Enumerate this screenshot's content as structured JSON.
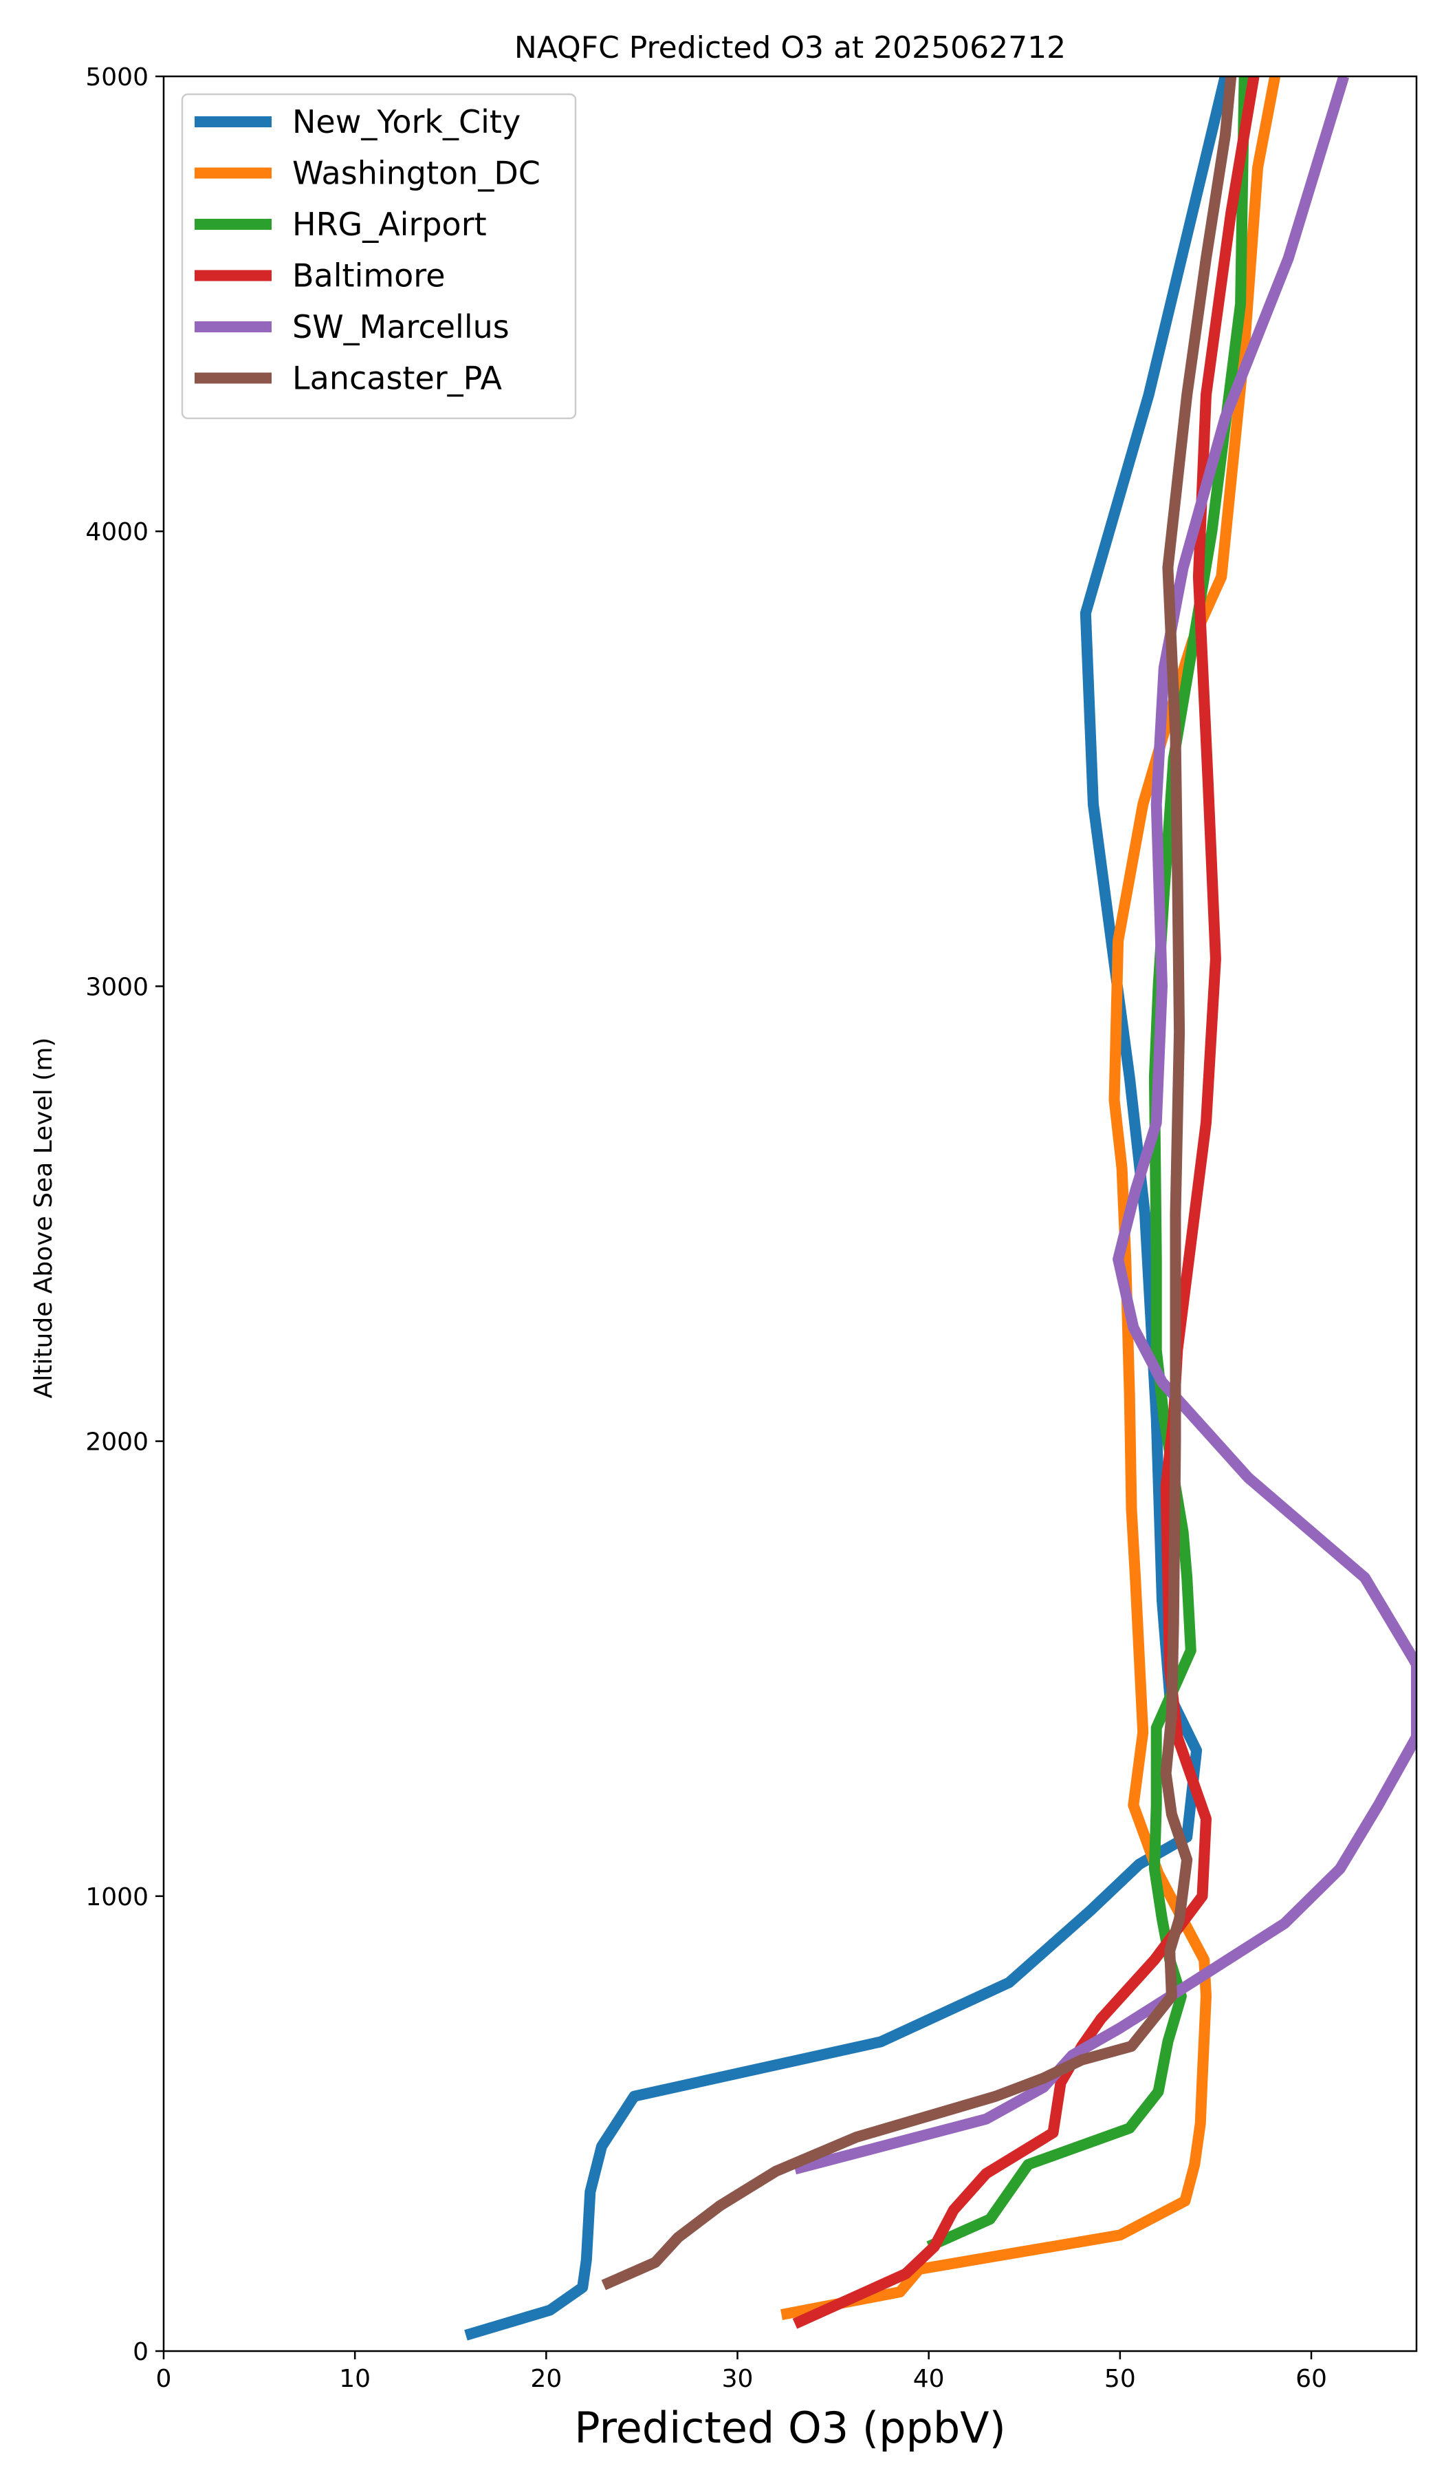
{
  "chart_data": {
    "type": "line",
    "title": "NAQFC Predicted O3 at 2025062712",
    "xlabel": "Predicted O3 (ppbV)",
    "ylabel": "Altitude Above Sea Level (m)",
    "xlim": [
      0,
      65.5
    ],
    "ylim": [
      0,
      5000
    ],
    "xticks": [
      "0",
      "10",
      "20",
      "30",
      "40",
      "50",
      "60"
    ],
    "yticks": [
      "0",
      "1000",
      "2000",
      "3000",
      "4000",
      "5000"
    ],
    "grid": false,
    "legend_position": "top-left",
    "series": [
      {
        "name": "New_York_City",
        "color": "#1f77b4",
        "points": [
          [
            15.8,
            35
          ],
          [
            20.2,
            90
          ],
          [
            21.9,
            140
          ],
          [
            22.1,
            200
          ],
          [
            22.3,
            350
          ],
          [
            22.9,
            450
          ],
          [
            24.6,
            560
          ],
          [
            37.5,
            680
          ],
          [
            44.2,
            810
          ],
          [
            48.5,
            970
          ],
          [
            51,
            1070
          ],
          [
            53.5,
            1130
          ],
          [
            54,
            1320
          ],
          [
            52.6,
            1440
          ],
          [
            52.2,
            1650
          ],
          [
            51.9,
            2050
          ],
          [
            51.7,
            2200
          ],
          [
            51.3,
            2500
          ],
          [
            50.5,
            2800
          ],
          [
            49.7,
            3050
          ],
          [
            48.6,
            3400
          ],
          [
            48.2,
            3820
          ],
          [
            51.5,
            4300
          ],
          [
            55.5,
            5000
          ]
        ]
      },
      {
        "name": "Washington_DC",
        "color": "#ff7f0e",
        "points": [
          [
            32.3,
            80
          ],
          [
            38.5,
            130
          ],
          [
            39.5,
            180
          ],
          [
            50,
            255
          ],
          [
            53.4,
            330
          ],
          [
            53.9,
            410
          ],
          [
            54.2,
            500
          ],
          [
            54.3,
            600
          ],
          [
            54.5,
            780
          ],
          [
            54.4,
            860
          ],
          [
            52,
            1050
          ],
          [
            50.7,
            1200
          ],
          [
            51.2,
            1360
          ],
          [
            50.8,
            1700
          ],
          [
            50.6,
            1850
          ],
          [
            50.5,
            2100
          ],
          [
            50.3,
            2400
          ],
          [
            50.1,
            2600
          ],
          [
            49.7,
            2750
          ],
          [
            49.9,
            3100
          ],
          [
            51.2,
            3400
          ],
          [
            52.6,
            3600
          ],
          [
            53.8,
            3760
          ],
          [
            55.3,
            3900
          ],
          [
            56.5,
            4400
          ],
          [
            57.2,
            4800
          ],
          [
            58.1,
            5000
          ]
        ]
      },
      {
        "name": "HRG_Airport",
        "color": "#2ca02c",
        "points": [
          [
            40,
            230
          ],
          [
            43.2,
            290
          ],
          [
            45.2,
            410
          ],
          [
            50.5,
            490
          ],
          [
            52,
            570
          ],
          [
            52.5,
            680
          ],
          [
            53.2,
            780
          ],
          [
            52.6,
            860
          ],
          [
            52.2,
            950
          ],
          [
            51.8,
            1060
          ],
          [
            51.9,
            1200
          ],
          [
            51.9,
            1370
          ],
          [
            53.7,
            1540
          ],
          [
            53.5,
            1700
          ],
          [
            53.3,
            1800
          ],
          [
            52.3,
            2050
          ],
          [
            51.9,
            2200
          ],
          [
            51.9,
            2400
          ],
          [
            51.8,
            2800
          ],
          [
            52.0,
            3000
          ],
          [
            52.3,
            3200
          ],
          [
            52.8,
            3500
          ],
          [
            53.6,
            3700
          ],
          [
            54.8,
            4000
          ],
          [
            56.3,
            4500
          ],
          [
            56.5,
            5000
          ]
        ]
      },
      {
        "name": "Baltimore",
        "color": "#d62728",
        "points": [
          [
            33,
            60
          ],
          [
            38.8,
            170
          ],
          [
            40.3,
            230
          ],
          [
            41.3,
            310
          ],
          [
            43,
            390
          ],
          [
            46.5,
            480
          ],
          [
            46.9,
            590
          ],
          [
            48,
            670
          ],
          [
            49,
            730
          ],
          [
            51.8,
            860
          ],
          [
            54.3,
            1000
          ],
          [
            54.5,
            1170
          ],
          [
            53,
            1350
          ],
          [
            52.6,
            1500
          ],
          [
            52.5,
            1700
          ],
          [
            52.4,
            1900
          ],
          [
            52.8,
            2050
          ],
          [
            53,
            2200
          ],
          [
            53.6,
            2400
          ],
          [
            54.5,
            2700
          ],
          [
            55,
            3060
          ],
          [
            54.6,
            3450
          ],
          [
            54.1,
            3900
          ],
          [
            54.5,
            4300
          ],
          [
            55.8,
            4700
          ],
          [
            57,
            5000
          ]
        ]
      },
      {
        "name": "SW_Marcellus",
        "color": "#9467bd",
        "points": [
          [
            33,
            400
          ],
          [
            43,
            510
          ],
          [
            46,
            580
          ],
          [
            47.5,
            650
          ],
          [
            50,
            710
          ],
          [
            51.5,
            750
          ],
          [
            54.5,
            830
          ],
          [
            58.6,
            940
          ],
          [
            61.5,
            1060
          ],
          [
            63.5,
            1200
          ],
          [
            65.5,
            1350
          ],
          [
            65.5,
            1510
          ],
          [
            62.8,
            1700
          ],
          [
            56.7,
            1920
          ],
          [
            52.2,
            2130
          ],
          [
            50.7,
            2250
          ],
          [
            49.9,
            2400
          ],
          [
            50.8,
            2550
          ],
          [
            51.9,
            2700
          ],
          [
            52.2,
            3000
          ],
          [
            51.9,
            3400
          ],
          [
            52.3,
            3700
          ],
          [
            53.3,
            3920
          ],
          [
            55.5,
            4250
          ],
          [
            58.8,
            4600
          ],
          [
            61.7,
            5000
          ]
        ]
      },
      {
        "name": "Lancaster_PA",
        "color": "#8c564b",
        "points": [
          [
            23,
            145
          ],
          [
            25.7,
            195
          ],
          [
            26.9,
            250
          ],
          [
            29.1,
            320
          ],
          [
            32,
            395
          ],
          [
            36.2,
            470
          ],
          [
            43.5,
            560
          ],
          [
            46,
            600
          ],
          [
            48,
            640
          ],
          [
            50.6,
            670
          ],
          [
            52.7,
            780
          ],
          [
            52.6,
            880
          ],
          [
            53.1,
            950
          ],
          [
            53.5,
            1080
          ],
          [
            52.7,
            1180
          ],
          [
            52.4,
            1270
          ],
          [
            52.7,
            1400
          ],
          [
            52.8,
            1600
          ],
          [
            52.9,
            2000
          ],
          [
            52.9,
            2500
          ],
          [
            53.1,
            2900
          ],
          [
            53.0,
            3250
          ],
          [
            52.9,
            3550
          ],
          [
            52.5,
            3920
          ],
          [
            53.5,
            4300
          ],
          [
            54.5,
            4600
          ],
          [
            55.5,
            4870
          ],
          [
            55.8,
            5000
          ]
        ]
      }
    ]
  }
}
